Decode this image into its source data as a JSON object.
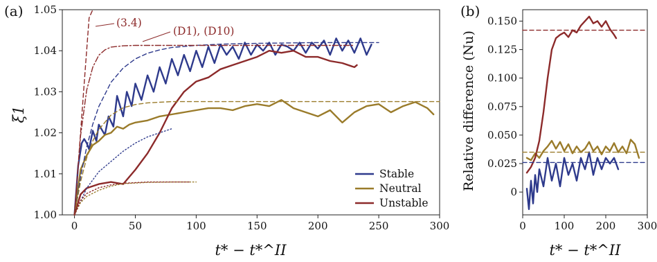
{
  "chart_data": [
    {
      "panel": "(a)",
      "type": "line",
      "xlabel": "t* − t*^II",
      "ylabel": "ξ1",
      "xlim": [
        -10,
        300
      ],
      "ylim": [
        1.0,
        1.05
      ],
      "xticks": [
        0,
        50,
        100,
        150,
        200,
        250,
        300
      ],
      "yticks": [
        "1.00",
        "1.01",
        "1.02",
        "1.03",
        "1.04",
        "1.05"
      ],
      "annotations": [
        {
          "text": "(3.4)",
          "points_to": [
            12,
            1.05
          ]
        },
        {
          "text": "(D1), (D10)",
          "points_to": [
            70,
            1.0415
          ]
        }
      ],
      "legend": {
        "position": "lower-right",
        "entries": [
          "Stable",
          "Neutral",
          "Unstable"
        ]
      },
      "series": [
        {
          "name": "Stable",
          "style": "solid",
          "color": "#2e3a8c",
          "x": [
            0,
            3,
            6,
            8,
            10,
            12,
            15,
            18,
            20,
            25,
            28,
            32,
            35,
            40,
            43,
            47,
            50,
            55,
            60,
            65,
            70,
            75,
            80,
            85,
            90,
            95,
            100,
            105,
            110,
            115,
            120,
            125,
            130,
            135,
            140,
            145,
            150,
            155,
            160,
            165,
            170,
            175,
            180,
            185,
            190,
            195,
            200,
            205,
            210,
            215,
            220,
            225,
            230,
            235,
            240,
            244
          ],
          "y": [
            1.0,
            1.012,
            1.0175,
            1.0185,
            1.0175,
            1.016,
            1.0205,
            1.018,
            1.022,
            1.0195,
            1.024,
            1.0215,
            1.029,
            1.024,
            1.03,
            1.0265,
            1.032,
            1.028,
            1.034,
            1.03,
            1.036,
            1.032,
            1.038,
            1.034,
            1.039,
            1.035,
            1.04,
            1.036,
            1.041,
            1.037,
            1.0415,
            1.039,
            1.041,
            1.038,
            1.042,
            1.039,
            1.0415,
            1.04,
            1.042,
            1.039,
            1.0415,
            1.041,
            1.04,
            1.042,
            1.0395,
            1.042,
            1.0405,
            1.0425,
            1.039,
            1.043,
            1.04,
            1.0425,
            1.0395,
            1.043,
            1.039,
            1.0415
          ]
        },
        {
          "name": "Neutral",
          "style": "solid",
          "color": "#9a7b2a",
          "x": [
            0,
            5,
            10,
            15,
            20,
            25,
            30,
            35,
            40,
            45,
            50,
            60,
            70,
            80,
            90,
            100,
            110,
            120,
            130,
            140,
            150,
            160,
            170,
            180,
            190,
            200,
            210,
            220,
            230,
            240,
            250,
            260,
            270,
            280,
            290,
            295
          ],
          "y": [
            1.0,
            1.011,
            1.0145,
            1.017,
            1.018,
            1.0195,
            1.02,
            1.0215,
            1.021,
            1.022,
            1.0225,
            1.023,
            1.024,
            1.0245,
            1.025,
            1.0255,
            1.026,
            1.026,
            1.0255,
            1.0265,
            1.027,
            1.0265,
            1.028,
            1.026,
            1.025,
            1.024,
            1.0255,
            1.0225,
            1.025,
            1.0265,
            1.027,
            1.025,
            1.0265,
            1.0275,
            1.026,
            1.0245
          ]
        },
        {
          "name": "Unstable",
          "style": "solid",
          "color": "#8c2a2a",
          "x": [
            0,
            5,
            10,
            20,
            30,
            40,
            50,
            60,
            70,
            80,
            90,
            100,
            110,
            120,
            130,
            140,
            150,
            160,
            170,
            180,
            190,
            200,
            210,
            220,
            230,
            232
          ],
          "y": [
            1.0,
            1.005,
            1.0065,
            1.0075,
            1.008,
            1.0075,
            1.011,
            1.015,
            1.02,
            1.026,
            1.03,
            1.0325,
            1.0335,
            1.0355,
            1.0365,
            1.0375,
            1.0385,
            1.04,
            1.0395,
            1.04,
            1.0385,
            1.0385,
            1.0375,
            1.037,
            1.036,
            1.0365
          ]
        },
        {
          "name": "",
          "style": "dashed",
          "color": "#2e3a8c",
          "x": [
            0,
            5,
            10,
            15,
            20,
            30,
            40,
            50,
            60,
            70,
            80,
            100,
            120,
            150,
            200,
            250
          ],
          "y": [
            1.0,
            1.0093,
            1.0165,
            1.0221,
            1.0264,
            1.0323,
            1.0358,
            1.038,
            1.0394,
            1.0402,
            1.0408,
            1.0413,
            1.0416,
            1.0418,
            1.042,
            1.042
          ]
        },
        {
          "name": "",
          "style": "dashed",
          "color": "#9a7b2a",
          "x": [
            0,
            5,
            10,
            15,
            20,
            30,
            40,
            50,
            60,
            80,
            100,
            150,
            200,
            300
          ],
          "y": [
            1.0,
            1.0081,
            1.0139,
            1.018,
            1.0208,
            1.0243,
            1.0261,
            1.0269,
            1.0273,
            1.0276,
            1.0276,
            1.0276,
            1.0276,
            1.0276
          ]
        },
        {
          "name": "",
          "style": "dashdot",
          "color": "#8c2a2a",
          "x": [
            0,
            5,
            10,
            15,
            20,
            25,
            30,
            40,
            50,
            60,
            80,
            100,
            150,
            200,
            230
          ],
          "y": [
            1.0,
            1.0193,
            1.0304,
            1.036,
            1.0389,
            1.0402,
            1.0409,
            1.0412,
            1.0413,
            1.0413,
            1.0413,
            1.0413,
            1.0413,
            1.0413,
            1.0413
          ]
        },
        {
          "name": "",
          "style": "dashed",
          "color": "#8c2a2a",
          "x": [
            0,
            4,
            8,
            12,
            15
          ],
          "y": [
            1.0,
            1.016,
            1.032,
            1.048,
            1.05
          ]
        },
        {
          "name": "",
          "style": "dotted",
          "color": "#2e3a8c",
          "x": [
            0,
            10,
            20,
            30,
            40,
            50,
            60,
            70,
            80
          ],
          "y": [
            1.0,
            1.0065,
            1.0105,
            1.013,
            1.0155,
            1.0175,
            1.019,
            1.02,
            1.021
          ]
        },
        {
          "name": "",
          "style": "dotted",
          "color": "#9a7b2a",
          "x": [
            0,
            5,
            10,
            20,
            30,
            40,
            60,
            80,
            100
          ],
          "y": [
            1.0,
            1.003,
            1.0045,
            1.006,
            1.007,
            1.0076,
            1.0079,
            1.008,
            1.008
          ]
        },
        {
          "name": "",
          "style": "dotted",
          "color": "#8c2a2a",
          "x": [
            0,
            5,
            10,
            20,
            30,
            40,
            60,
            80,
            95
          ],
          "y": [
            1.0,
            1.0035,
            1.0052,
            1.0066,
            1.0073,
            1.0077,
            1.008,
            1.008,
            1.008
          ]
        }
      ]
    },
    {
      "panel": "(b)",
      "type": "line",
      "xlabel": "t* − t*^II",
      "ylabel": "Relative difference (Nu)",
      "xlim": [
        0,
        300
      ],
      "ylim": [
        -0.02,
        0.16
      ],
      "xticks": [
        0,
        100,
        200,
        300
      ],
      "yticks": [
        "0",
        "0.025",
        "0.050",
        "0.075",
        "0.100",
        "0.125",
        "0.150"
      ],
      "series": [
        {
          "name": "Stable",
          "style": "solid",
          "color": "#2e3a8c",
          "x": [
            10,
            15,
            20,
            25,
            30,
            35,
            40,
            50,
            60,
            70,
            80,
            90,
            100,
            110,
            120,
            130,
            140,
            150,
            160,
            170,
            180,
            190,
            200,
            210,
            220,
            230
          ],
          "y": [
            0.003,
            -0.015,
            0.01,
            -0.01,
            0.015,
            0.0,
            0.02,
            0.005,
            0.03,
            0.01,
            0.025,
            0.005,
            0.03,
            0.015,
            0.025,
            0.01,
            0.03,
            0.02,
            0.035,
            0.015,
            0.03,
            0.02,
            0.03,
            0.025,
            0.03,
            0.02
          ]
        },
        {
          "name": "Neutral",
          "style": "solid",
          "color": "#9a7b2a",
          "x": [
            10,
            20,
            30,
            40,
            50,
            60,
            70,
            80,
            90,
            100,
            110,
            120,
            130,
            140,
            150,
            160,
            170,
            180,
            190,
            200,
            210,
            220,
            230,
            240,
            250,
            260,
            270,
            280
          ],
          "y": [
            0.03,
            0.028,
            0.034,
            0.03,
            0.036,
            0.04,
            0.045,
            0.038,
            0.044,
            0.036,
            0.042,
            0.034,
            0.04,
            0.035,
            0.038,
            0.044,
            0.036,
            0.04,
            0.033,
            0.04,
            0.036,
            0.043,
            0.035,
            0.04,
            0.034,
            0.046,
            0.042,
            0.03
          ]
        },
        {
          "name": "Unstable",
          "style": "solid",
          "color": "#8c2a2a",
          "x": [
            10,
            20,
            30,
            40,
            50,
            60,
            70,
            80,
            90,
            100,
            110,
            120,
            130,
            140,
            150,
            160,
            170,
            180,
            190,
            200,
            210,
            220,
            225
          ],
          "y": [
            0.017,
            0.022,
            0.03,
            0.045,
            0.07,
            0.1,
            0.125,
            0.135,
            0.138,
            0.14,
            0.136,
            0.142,
            0.14,
            0.146,
            0.15,
            0.154,
            0.148,
            0.15,
            0.145,
            0.15,
            0.143,
            0.138,
            0.135
          ]
        },
        {
          "name": "",
          "style": "dashed",
          "color": "#2e3a8c",
          "x": [
            0,
            300
          ],
          "y": [
            0.026,
            0.026
          ]
        },
        {
          "name": "",
          "style": "dashed",
          "color": "#9a7b2a",
          "x": [
            0,
            300
          ],
          "y": [
            0.035,
            0.035
          ]
        },
        {
          "name": "",
          "style": "dashed",
          "color": "#8c2a2a",
          "x": [
            0,
            300
          ],
          "y": [
            0.142,
            0.142
          ]
        }
      ]
    }
  ]
}
